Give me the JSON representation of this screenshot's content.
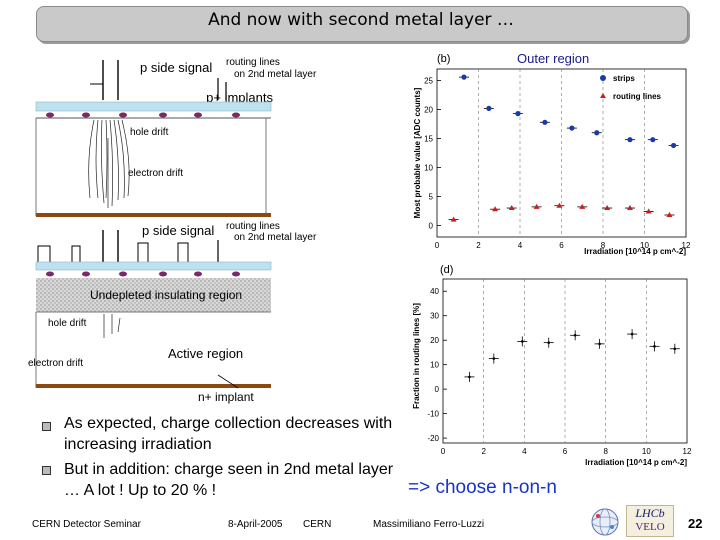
{
  "slide": {
    "title": "And now with second metal layer …",
    "page_number": "22"
  },
  "diagram_top": {
    "p_side_signal": "p side signal",
    "routing_lines": "routing lines",
    "routing_lines_2": "on 2nd metal layer",
    "p_implants": "p+ implants",
    "hole_drift": "hole drift",
    "electron_drift": "electron drift"
  },
  "diagram_bottom": {
    "p_side_signal": "p side signal",
    "routing_lines": "routing lines",
    "routing_lines_2": "on 2nd metal layer",
    "undepleted": "Undepleted insulating region",
    "hole_drift": "hole drift",
    "electron_drift": "electron drift",
    "active_region": "Active region",
    "n_implant": "n+ implant"
  },
  "bullets": [
    "As expected, charge collection decreases with increasing irradiation",
    "But in addition: charge seen in 2nd metal layer … A lot ! Up to 20 % !"
  ],
  "conclusion": "=> choose n-on-n",
  "footer": {
    "seminar": "CERN Detector Seminar",
    "date": "8-April-2005",
    "org": "CERN",
    "author": "Massimiliano Ferro-Luzzi"
  },
  "logos": {
    "lhcb": "LHCb",
    "velo": "VELO"
  },
  "chart_data": [
    {
      "type": "scatter",
      "panel_label": "(b)",
      "title": "Outer region",
      "xlabel": "Irradiation [10^14 p cm^-2]",
      "ylabel": "Most probable value [ADC counts]",
      "xlim": [
        0,
        12
      ],
      "ylim": [
        -2,
        27
      ],
      "xticks": [
        "0",
        "2",
        "4",
        "6",
        "8",
        "10",
        "12"
      ],
      "yticks": [
        "0",
        "5",
        "10",
        "15",
        "20",
        "25"
      ],
      "series": [
        {
          "name": "strips",
          "marker": "circle",
          "color": "#1a3aa8",
          "x": [
            1.3,
            2.5,
            3.9,
            5.2,
            6.5,
            7.7,
            9.3,
            10.4,
            11.4
          ],
          "y": [
            25.6,
            20.2,
            19.3,
            17.8,
            16.8,
            16.0,
            14.8,
            14.8,
            13.8
          ]
        },
        {
          "name": "routing lines",
          "marker": "triangle",
          "color": "#c81e1e",
          "x": [
            0.8,
            2.8,
            3.6,
            4.8,
            5.9,
            7.0,
            8.2,
            9.3,
            10.2,
            11.2
          ],
          "y": [
            1.0,
            2.8,
            3.0,
            3.2,
            3.4,
            3.2,
            3.0,
            3.0,
            2.4,
            1.8
          ]
        }
      ]
    },
    {
      "type": "scatter",
      "panel_label": "(d)",
      "xlabel": "Irradiation [10^14 p cm^-2]",
      "ylabel": "Fraction in routing lines [%]",
      "xlim": [
        0,
        12
      ],
      "ylim": [
        -22,
        45
      ],
      "xticks": [
        "0",
        "2",
        "4",
        "6",
        "8",
        "10",
        "12"
      ],
      "yticks": [
        "-20",
        "-10",
        "0",
        "10",
        "20",
        "30",
        "40"
      ],
      "series": [
        {
          "name": "fraction",
          "marker": "dot",
          "color": "#000000",
          "x": [
            1.3,
            2.5,
            3.9,
            5.2,
            6.5,
            7.7,
            9.3,
            10.4,
            11.4
          ],
          "y": [
            5.0,
            12.5,
            19.5,
            19.0,
            22.0,
            18.5,
            22.5,
            17.5,
            16.5
          ]
        }
      ]
    }
  ]
}
